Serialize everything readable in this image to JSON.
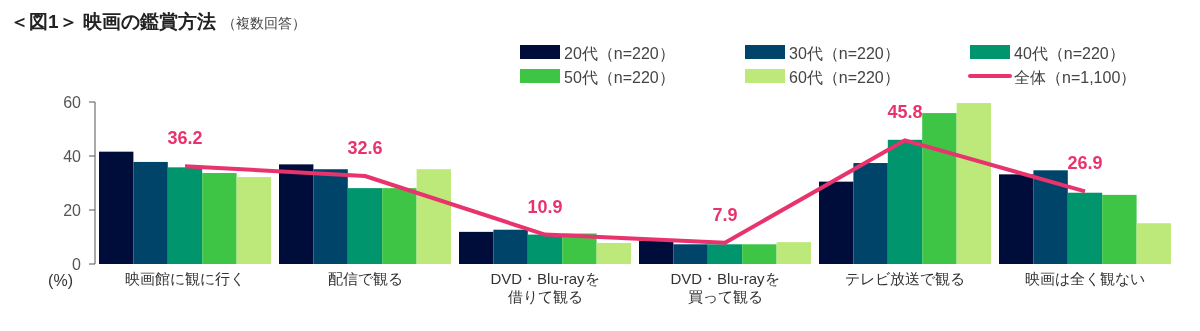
{
  "chart_data": {
    "type": "bar",
    "title": "＜図1＞ 映画の鑑賞方法",
    "subtitle": "（複数回答）",
    "ylabel": "(%)",
    "categories": [
      "映画館に観に行く",
      "配信で観る",
      "DVD・Blu-rayを借りて観る",
      "DVD・Blu-rayを買って観る",
      "テレビ放送で観る",
      "映画は全く観ない"
    ],
    "series": [
      {
        "name": "20代（n=220）",
        "color": "#000c3a",
        "values": [
          41.6,
          36.9,
          11.9,
          8.6,
          30.5,
          33.2
        ]
      },
      {
        "name": "30代（n=220）",
        "color": "#00446a",
        "values": [
          37.8,
          35.1,
          12.7,
          7.3,
          37.4,
          34.7
        ]
      },
      {
        "name": "40代（n=220）",
        "color": "#00956c",
        "values": [
          35.8,
          28.1,
          10.9,
          7.3,
          46.0,
          26.4
        ]
      },
      {
        "name": "50代（n=220）",
        "color": "#3ec545",
        "values": [
          33.7,
          28.1,
          11.3,
          7.3,
          55.9,
          25.6
        ]
      },
      {
        "name": "60代（n=220）",
        "color": "#bde87a",
        "values": [
          32.2,
          35.1,
          7.8,
          8.1,
          59.6,
          15.1
        ]
      },
      {
        "name": "全体（n=1,100）",
        "color": "#e8336d",
        "type": "line",
        "values": [
          36.2,
          32.6,
          10.9,
          7.9,
          45.8,
          26.9
        ],
        "value_labels": [
          "36.2",
          "32.6",
          "10.9",
          "7.9",
          "45.8",
          "26.9"
        ]
      }
    ],
    "ylim": [
      0,
      60
    ],
    "yticks": [
      0,
      20,
      40,
      60
    ],
    "legend": "top right",
    "grid": false
  }
}
